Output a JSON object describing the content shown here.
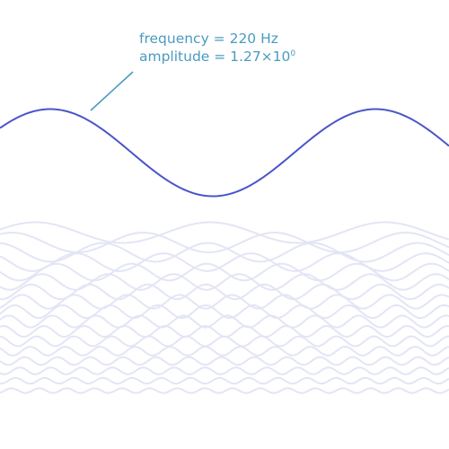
{
  "chart_data": {
    "type": "line",
    "title": "",
    "xlabel": "",
    "ylabel": "",
    "grid": false,
    "x_range_periods": [
      0,
      1.38
    ],
    "primary_series": {
      "frequency_hz": 220,
      "amplitude": 1.27,
      "phase": 0.6,
      "color": "#4a55c8"
    },
    "background_series": {
      "count": 17,
      "color": "#e3e5f5",
      "frequencies_multiple": [
        3,
        4,
        5,
        6,
        7,
        8,
        9,
        10,
        11,
        12,
        13,
        14,
        15,
        16,
        17,
        18,
        19
      ]
    },
    "annotation": {
      "line1": "frequency = 220 Hz",
      "line2_prefix": "amplitude = 1.27×10",
      "line2_exponent": "0",
      "color": "#4a9bbf"
    }
  }
}
